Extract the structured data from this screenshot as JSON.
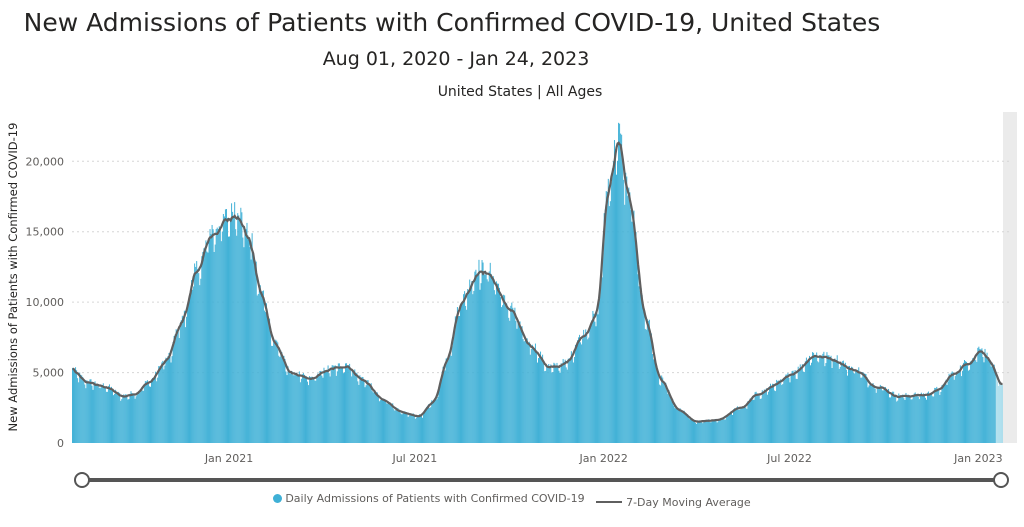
{
  "header": {
    "title": "New Admissions of Patients with Confirmed COVID-19, United States",
    "subtitle": "Aug 01, 2020 - Jan 24, 2023",
    "filter": "United States | All Ages"
  },
  "colors": {
    "bar": "#3fb0d6",
    "bar_faded": "#a9dcec",
    "line": "#5f5f5f",
    "grid": "#d6d6d6",
    "axis_text": "#605e5c",
    "slider": "#555555"
  },
  "chart_data": {
    "type": "bar",
    "title": "",
    "ylabel": "New Admissions of Patients with Confirmed COVID-19",
    "xlabel": "",
    "ylim": [
      0,
      23500
    ],
    "x_range": [
      "2020-08-01",
      "2023-01-24"
    ],
    "y_ticks": [
      0,
      5000,
      10000,
      15000,
      20000
    ],
    "y_tick_labels": [
      "0",
      "5,000",
      "10,000",
      "15,000",
      "20,000"
    ],
    "x_ticks": [
      "2021-01-01",
      "2021-07-01",
      "2022-01-01",
      "2022-07-01",
      "2023-01-01"
    ],
    "x_tick_labels": [
      "Jan 2021",
      "Jul 2021",
      "Jan 2022",
      "Jul 2022",
      "Jan 2023"
    ],
    "grid": true,
    "legend_position": "bottom",
    "series": [
      {
        "name": "Daily Admissions of Patients with Confirmed COVID-19",
        "kind": "bar",
        "note": "one bar per day; anchor points below (date, value) are interpolated daily",
        "anchors": [
          [
            "2020-08-01",
            5100
          ],
          [
            "2020-08-15",
            4300
          ],
          [
            "2020-09-01",
            4000
          ],
          [
            "2020-09-20",
            3300
          ],
          [
            "2020-10-01",
            3500
          ],
          [
            "2020-10-15",
            4300
          ],
          [
            "2020-11-01",
            5800
          ],
          [
            "2020-11-15",
            8500
          ],
          [
            "2020-12-01",
            12200
          ],
          [
            "2020-12-15",
            14800
          ],
          [
            "2021-01-01",
            15800
          ],
          [
            "2021-01-07",
            16500
          ],
          [
            "2021-01-20",
            14500
          ],
          [
            "2021-02-01",
            10500
          ],
          [
            "2021-02-15",
            7000
          ],
          [
            "2021-03-01",
            5000
          ],
          [
            "2021-03-20",
            4500
          ],
          [
            "2021-04-10",
            5200
          ],
          [
            "2021-04-25",
            5500
          ],
          [
            "2021-05-10",
            4500
          ],
          [
            "2021-06-01",
            3000
          ],
          [
            "2021-06-20",
            2100
          ],
          [
            "2021-07-05",
            1900
          ],
          [
            "2021-07-20",
            3000
          ],
          [
            "2021-08-01",
            6000
          ],
          [
            "2021-08-15",
            10000
          ],
          [
            "2021-09-01",
            12200
          ],
          [
            "2021-09-10",
            12000
          ],
          [
            "2021-10-01",
            9500
          ],
          [
            "2021-10-20",
            7000
          ],
          [
            "2021-11-10",
            5300
          ],
          [
            "2021-11-25",
            5600
          ],
          [
            "2021-12-10",
            7500
          ],
          [
            "2021-12-25",
            9000
          ],
          [
            "2022-01-05",
            18000
          ],
          [
            "2022-01-15",
            21500
          ],
          [
            "2022-01-25",
            17500
          ],
          [
            "2022-02-10",
            9000
          ],
          [
            "2022-02-25",
            4500
          ],
          [
            "2022-03-15",
            2300
          ],
          [
            "2022-04-01",
            1500
          ],
          [
            "2022-04-20",
            1600
          ],
          [
            "2022-05-15",
            2500
          ],
          [
            "2022-06-01",
            3500
          ],
          [
            "2022-06-20",
            4200
          ],
          [
            "2022-07-05",
            5000
          ],
          [
            "2022-07-25",
            6200
          ],
          [
            "2022-08-10",
            6000
          ],
          [
            "2022-09-01",
            5200
          ],
          [
            "2022-09-25",
            4000
          ],
          [
            "2022-10-15",
            3300
          ],
          [
            "2022-11-10",
            3400
          ],
          [
            "2022-11-25",
            3800
          ],
          [
            "2022-12-05",
            4800
          ],
          [
            "2022-12-25",
            5800
          ],
          [
            "2023-01-03",
            6700
          ],
          [
            "2023-01-10",
            6000
          ],
          [
            "2023-01-24",
            3900
          ]
        ]
      },
      {
        "name": "7-Day Moving Average",
        "kind": "line",
        "note": "7-day centered moving average of the daily series"
      }
    ],
    "slider": {
      "start": "2020-08-01",
      "end": "2023-01-24"
    }
  }
}
